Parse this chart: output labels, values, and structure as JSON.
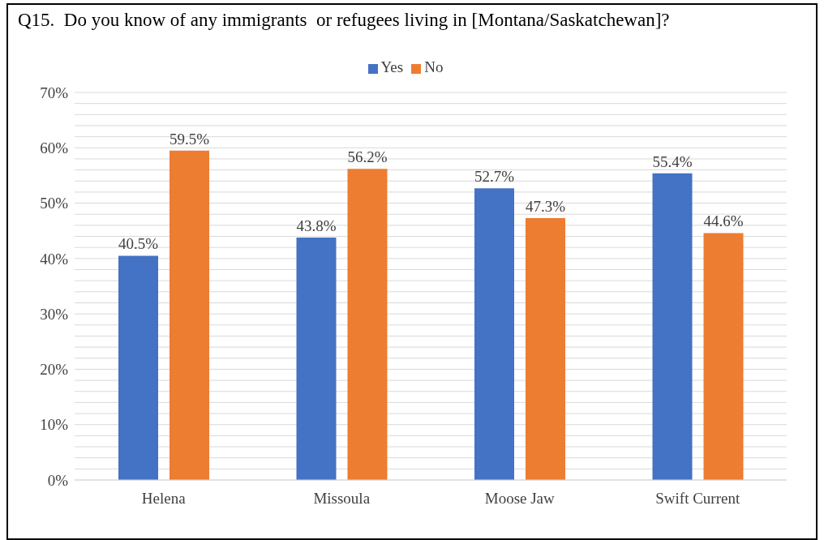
{
  "chart_data": {
    "type": "bar",
    "title": "Q15.  Do you know of any immigrants  or refugees living in [Montana/Saskatchewan]?",
    "categories": [
      "Helena",
      "Missoula",
      "Moose Jaw",
      "Swift Current"
    ],
    "series": [
      {
        "name": "Yes",
        "color": "#4472c4",
        "values": [
          40.5,
          43.8,
          52.7,
          55.4
        ],
        "value_labels": [
          "40.5%",
          "43.8%",
          "52.7%",
          "55.4%"
        ]
      },
      {
        "name": "No",
        "color": "#ed7d31",
        "values": [
          59.5,
          56.2,
          47.3,
          44.6
        ],
        "value_labels": [
          "59.5%",
          "56.2%",
          "47.3%",
          "44.6%"
        ]
      }
    ],
    "ylim": [
      0,
      70
    ],
    "yticks": [
      {
        "value": 0,
        "label": "0%"
      },
      {
        "value": 2,
        "label": null
      },
      {
        "value": 4,
        "label": null
      },
      {
        "value": 6,
        "label": null
      },
      {
        "value": 8,
        "label": null
      },
      {
        "value": 10,
        "label": "10%"
      },
      {
        "value": 12,
        "label": null
      },
      {
        "value": 14,
        "label": null
      },
      {
        "value": 16,
        "label": null
      },
      {
        "value": 18,
        "label": null
      },
      {
        "value": 20,
        "label": "20%"
      },
      {
        "value": 22,
        "label": null
      },
      {
        "value": 24,
        "label": null
      },
      {
        "value": 26,
        "label": null
      },
      {
        "value": 28,
        "label": null
      },
      {
        "value": 30,
        "label": "30%"
      },
      {
        "value": 32,
        "label": null
      },
      {
        "value": 34,
        "label": null
      },
      {
        "value": 36,
        "label": null
      },
      {
        "value": 38,
        "label": null
      },
      {
        "value": 40,
        "label": "40%"
      },
      {
        "value": 42,
        "label": null
      },
      {
        "value": 44,
        "label": null
      },
      {
        "value": 46,
        "label": null
      },
      {
        "value": 48,
        "label": null
      },
      {
        "value": 50,
        "label": "50%"
      },
      {
        "value": 52,
        "label": null
      },
      {
        "value": 54,
        "label": null
      },
      {
        "value": 56,
        "label": null
      },
      {
        "value": 58,
        "label": null
      },
      {
        "value": 60,
        "label": "60%"
      },
      {
        "value": 62,
        "label": null
      },
      {
        "value": 64,
        "label": null
      },
      {
        "value": 66,
        "label": null
      },
      {
        "value": 68,
        "label": null
      },
      {
        "value": 70,
        "label": "70%"
      }
    ],
    "grid": "y",
    "legend": "top"
  }
}
